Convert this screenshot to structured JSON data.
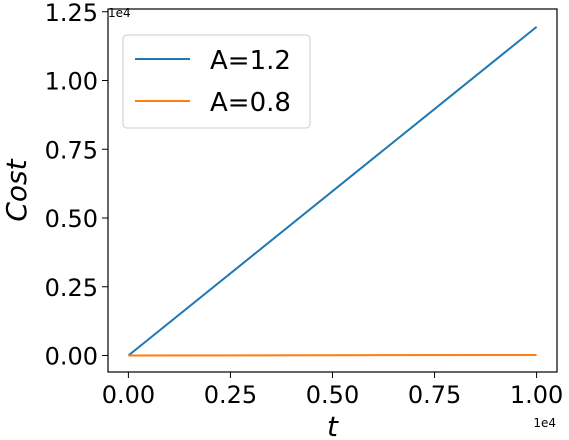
{
  "chart_data": {
    "type": "line",
    "title": "",
    "xlabel": "t",
    "ylabel": "Cost",
    "x_offset_label": "1e4",
    "y_offset_label": "1e4",
    "xlim": [
      -0.05,
      1.05
    ],
    "ylim": [
      -0.06,
      1.26
    ],
    "xticks": [
      0.0,
      0.25,
      0.5,
      0.75,
      1.0
    ],
    "xtick_labels": [
      "0.00",
      "0.25",
      "0.50",
      "0.75",
      "1.00"
    ],
    "yticks": [
      0.0,
      0.25,
      0.5,
      0.75,
      1.0,
      1.25
    ],
    "ytick_labels": [
      "0.00",
      "0.25",
      "0.50",
      "0.75",
      "1.00",
      "1.25"
    ],
    "grid": false,
    "legend_position": "top-left",
    "series": [
      {
        "name": "A=1.2",
        "color": "#1f77b4",
        "x": [
          0.0,
          1.0
        ],
        "y": [
          0.0,
          1.195
        ]
      },
      {
        "name": "A=0.8",
        "color": "#ff7f0e",
        "x": [
          0.0,
          1.0
        ],
        "y": [
          0.0,
          0.002
        ]
      }
    ]
  }
}
